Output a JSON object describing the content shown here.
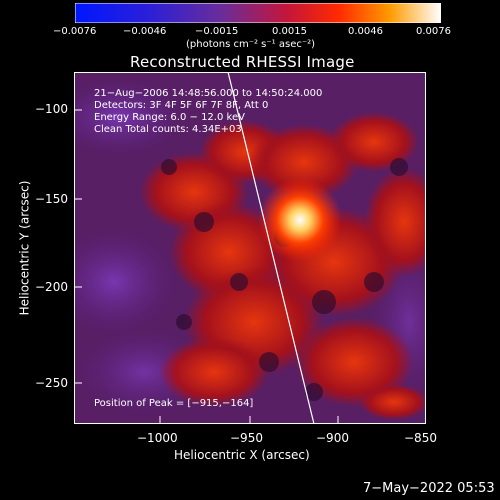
{
  "colorbar": {
    "ticks": [
      "−0.0076",
      "−0.0046",
      "−0.0015",
      "0.0015",
      "0.0046",
      "0.0076"
    ],
    "units": "(photons cm⁻² s⁻¹ asec⁻²)"
  },
  "plot": {
    "title": "Reconstructed RHESSI Image",
    "x_label": "Heliocentric X (arcsec)",
    "y_label": "Heliocentric Y (arcsec)",
    "x_ticks": [
      "−1000",
      "−950",
      "−900",
      "−850"
    ],
    "y_ticks": [
      "−100",
      "−150",
      "−200",
      "−250"
    ],
    "info_lines": [
      "21−Aug−2006 14:48:56.000  to 14:50:24.000",
      "Detectors: 3F 4F 5F 6F 7F 8F, Att 0",
      "Energy Range: 6.0 − 12.0 keV",
      "Clean     Total counts: 4.34E+03"
    ],
    "peak_label": "Position of Peak = [−915,−164]"
  },
  "footer": {
    "date": "7−May−2022 05:53"
  },
  "colors": {
    "low": "#0b1cff",
    "mid": "#7a2a8c",
    "high": "#ff3a00",
    "peak": "#ffffff",
    "background": "#000000"
  }
}
